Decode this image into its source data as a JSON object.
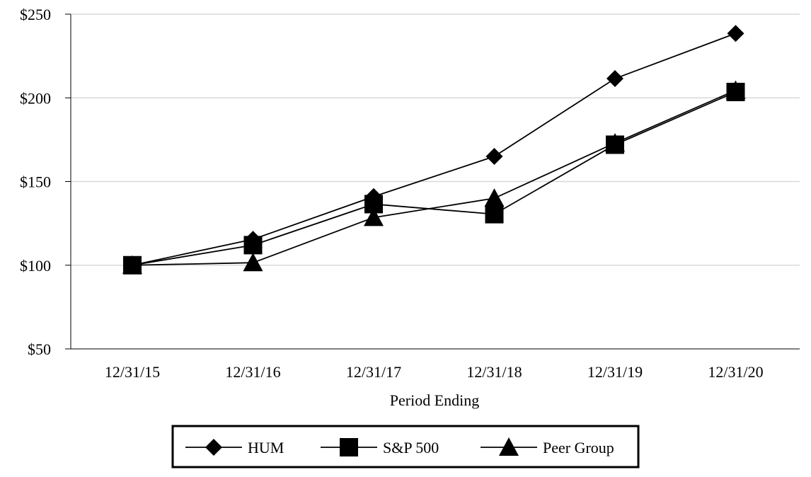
{
  "chart_data": {
    "type": "line",
    "title": "",
    "xlabel": "Period Ending",
    "ylabel": "",
    "categories": [
      "12/31/15",
      "12/31/16",
      "12/31/17",
      "12/31/18",
      "12/31/19",
      "12/31/20"
    ],
    "ylim": [
      50,
      250
    ],
    "yticks": [
      50,
      100,
      150,
      200,
      250
    ],
    "ytick_labels": [
      "$50",
      "$100",
      "$150",
      "$200",
      "$250"
    ],
    "grid": true,
    "legend_position": "bottom-center",
    "series": [
      {
        "name": "HUM",
        "marker": "diamond",
        "color": "#000000",
        "values": [
          100,
          115.5,
          141,
          165,
          211.5,
          238.5
        ]
      },
      {
        "name": "S&P 500",
        "marker": "square",
        "color": "#000000",
        "values": [
          100,
          112,
          136.5,
          130.5,
          172,
          203.5
        ]
      },
      {
        "name": "Peer Group",
        "marker": "triangle",
        "color": "#000000",
        "values": [
          100,
          101.5,
          128.5,
          140,
          173,
          204.5
        ]
      }
    ]
  }
}
